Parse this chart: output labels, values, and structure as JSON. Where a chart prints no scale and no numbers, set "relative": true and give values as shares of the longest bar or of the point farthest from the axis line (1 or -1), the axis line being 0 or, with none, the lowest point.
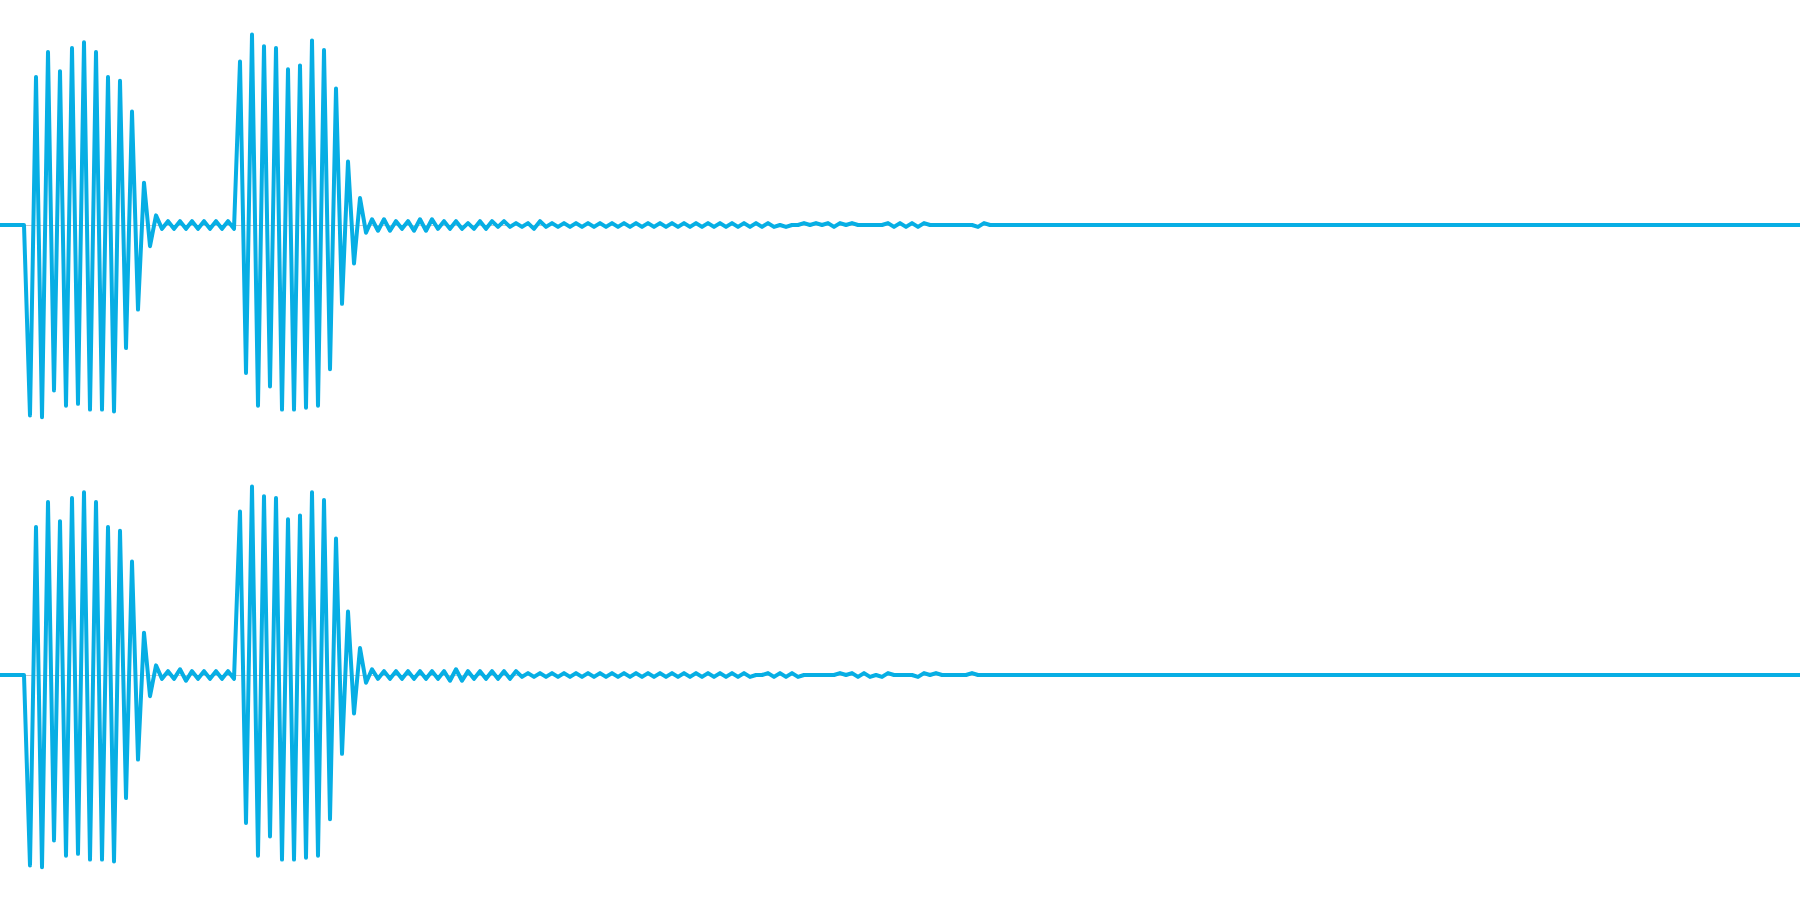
{
  "chart_data": [
    {
      "type": "line",
      "relative": true,
      "categories": [
        null,
        null,
        null,
        null,
        null,
        null,
        null,
        null,
        null,
        null,
        null,
        null,
        null,
        null,
        null,
        null,
        null,
        null,
        null,
        null,
        null,
        null,
        null,
        null,
        null,
        null,
        null,
        null,
        null,
        null,
        null,
        null,
        null,
        null,
        null,
        null,
        null,
        null,
        null,
        null,
        null,
        null,
        null,
        null,
        null,
        null,
        null,
        null,
        null,
        null,
        null,
        null,
        null,
        null,
        null,
        null,
        null,
        null,
        null,
        null,
        null,
        null,
        null,
        null,
        null,
        null,
        null,
        null,
        null,
        null,
        null,
        null,
        null,
        null,
        null,
        null,
        null,
        null,
        null,
        null,
        null,
        null,
        null,
        null,
        null,
        null,
        null,
        null,
        null,
        null,
        null,
        null,
        null,
        null,
        null,
        null,
        null,
        null,
        null,
        null,
        null,
        null,
        null,
        null,
        null,
        null,
        null,
        null,
        null,
        null,
        null,
        null,
        null,
        null,
        null,
        null,
        null,
        null,
        null,
        null,
        null,
        null,
        null,
        null,
        null,
        null,
        null,
        null,
        null,
        null,
        null,
        null,
        null,
        null,
        null,
        null,
        null,
        null,
        null,
        null,
        null,
        null,
        null,
        null,
        null,
        null,
        null,
        null,
        null,
        null,
        null,
        null,
        null,
        null,
        null,
        null,
        null,
        null,
        null,
        null,
        null,
        null,
        null,
        null,
        null,
        null,
        null,
        null,
        null,
        null,
        null,
        null,
        null,
        null,
        null,
        null,
        null,
        null,
        null,
        null,
        null,
        null,
        null,
        null,
        null,
        null,
        null,
        null,
        null,
        null,
        null,
        null,
        null,
        null,
        null,
        null,
        null,
        null,
        null,
        null,
        null,
        null,
        null,
        null,
        null,
        null,
        null,
        null,
        null,
        null,
        null,
        null,
        null,
        null,
        null,
        null,
        null,
        null,
        null,
        null,
        null,
        null,
        null,
        null,
        null,
        null,
        null,
        null,
        null,
        null,
        null,
        null,
        null,
        null,
        null,
        null,
        null,
        null,
        null,
        null,
        null,
        null,
        null,
        null,
        null,
        null,
        null,
        null,
        null,
        null,
        null,
        null,
        null,
        null,
        null,
        null,
        null,
        null,
        null,
        null,
        null,
        null,
        null,
        null,
        null,
        null,
        null,
        null,
        null,
        null,
        null,
        null,
        null,
        null,
        null,
        null,
        null,
        null,
        null,
        null,
        null,
        null,
        null,
        null,
        null,
        null,
        null,
        null,
        null,
        null,
        null,
        null,
        null,
        null,
        null,
        null,
        null,
        null,
        null,
        null,
        null
      ],
      "series": [
        {
          "color": "#07aee4",
          "values": [
            0,
            0,
            0,
            0,
            0,
            -0.99,
            0.77,
            -1,
            0.9,
            -0.86,
            0.8,
            -0.94,
            0.92,
            -0.93,
            0.95,
            -0.96,
            0.9,
            -0.96,
            0.77,
            -0.97,
            0.75,
            -0.64,
            0.59,
            -0.44,
            0.22,
            -0.11,
            0.05,
            -0.02,
            0.02,
            -0.02,
            0.02,
            -0.02,
            0.02,
            -0.02,
            0.02,
            -0.02,
            0.02,
            -0.02,
            0.02,
            -0.02,
            0.85,
            -0.77,
            0.99,
            -0.94,
            0.93,
            -0.84,
            0.92,
            -0.96,
            0.81,
            -0.96,
            0.83,
            -0.95,
            0.96,
            -0.94,
            0.91,
            -0.75,
            0.71,
            -0.41,
            0.33,
            -0.2,
            0.14,
            -0.04,
            0.03,
            -0.03,
            0.03,
            -0.03,
            0.02,
            -0.02,
            0.02,
            -0.03,
            0.03,
            -0.03,
            0.03,
            -0.02,
            0.02,
            -0.02,
            0.02,
            -0.02,
            0.01,
            -0.02,
            0.02,
            -0.02,
            0.02,
            -0.01,
            0.02,
            -0.01,
            0.01,
            -0.01,
            0.01,
            -0.02,
            0.02,
            -0.01,
            0.01,
            -0.01,
            0.01,
            -0.01,
            0.01,
            -0.01,
            0.01,
            -0.01,
            0.01,
            -0.01,
            0.01,
            -0.01,
            0.01,
            -0.01,
            0.01,
            -0.01,
            0.01,
            -0.01,
            0.01,
            -0.01,
            0.01,
            -0.01,
            0.01,
            -0.01,
            0.01,
            -0.01,
            0.01,
            -0.01,
            0.01,
            -0.01,
            0.01,
            -0.01,
            0.01,
            -0.01,
            0.01,
            -0.01,
            0.01,
            -0.01,
            0,
            -0.01,
            0,
            0,
            0.01,
            0,
            0.01,
            0,
            0.01,
            -0.01,
            0.01,
            0,
            0.01,
            0,
            0,
            0,
            0,
            0,
            0.01,
            -0.01,
            0.01,
            -0.01,
            0.01,
            -0.01,
            0.01,
            0,
            0,
            0,
            0,
            0,
            0,
            0,
            0,
            -0.01,
            0.01,
            0,
            0,
            0,
            0,
            0,
            0,
            0,
            0,
            0,
            0,
            0,
            0,
            0,
            0,
            0,
            0,
            0,
            0,
            0,
            0,
            0,
            0,
            0,
            0,
            0,
            0,
            0,
            0,
            0,
            0,
            0,
            0,
            0,
            0,
            0,
            0,
            0,
            0,
            0,
            0,
            0,
            0,
            0,
            0,
            0,
            0,
            0,
            0,
            0,
            0,
            0,
            0,
            0,
            0,
            0,
            0,
            0,
            0,
            0,
            0,
            0,
            0,
            0,
            0,
            0,
            0,
            0,
            0,
            0,
            0,
            0,
            0,
            0,
            0,
            0,
            0,
            0,
            0,
            0,
            0,
            0,
            0,
            0,
            0,
            0,
            0,
            0,
            0,
            0,
            0,
            0,
            0,
            0,
            0,
            0,
            0,
            0,
            0,
            0,
            0,
            0,
            0,
            0,
            0,
            0,
            0,
            0,
            0,
            0,
            0,
            0,
            0,
            0,
            0,
            0,
            0,
            0,
            0,
            0,
            0,
            0,
            0,
            0,
            0,
            0,
            0,
            0,
            0,
            0,
            0,
            0,
            0,
            0,
            0,
            0,
            0
          ]
        }
      ]
    },
    {
      "type": "line",
      "relative": true,
      "categories": [
        null,
        null,
        null,
        null,
        null,
        null,
        null,
        null,
        null,
        null,
        null,
        null,
        null,
        null,
        null,
        null,
        null,
        null,
        null,
        null,
        null,
        null,
        null,
        null,
        null,
        null,
        null,
        null,
        null,
        null,
        null,
        null,
        null,
        null,
        null,
        null,
        null,
        null,
        null,
        null,
        null,
        null,
        null,
        null,
        null,
        null,
        null,
        null,
        null,
        null,
        null,
        null,
        null,
        null,
        null,
        null,
        null,
        null,
        null,
        null,
        null,
        null,
        null,
        null,
        null,
        null,
        null,
        null,
        null,
        null,
        null,
        null,
        null,
        null,
        null,
        null,
        null,
        null,
        null,
        null,
        null,
        null,
        null,
        null,
        null,
        null,
        null,
        null,
        null,
        null,
        null,
        null,
        null,
        null,
        null,
        null,
        null,
        null,
        null,
        null,
        null,
        null,
        null,
        null,
        null,
        null,
        null,
        null,
        null,
        null,
        null,
        null,
        null,
        null,
        null,
        null,
        null,
        null,
        null,
        null,
        null,
        null,
        null,
        null,
        null,
        null,
        null,
        null,
        null,
        null,
        null,
        null,
        null,
        null,
        null,
        null,
        null,
        null,
        null,
        null,
        null,
        null,
        null,
        null,
        null,
        null,
        null,
        null,
        null,
        null,
        null,
        null,
        null,
        null,
        null,
        null,
        null,
        null,
        null,
        null,
        null,
        null,
        null,
        null,
        null,
        null,
        null,
        null,
        null,
        null,
        null,
        null,
        null,
        null,
        null,
        null,
        null,
        null,
        null,
        null,
        null,
        null,
        null,
        null,
        null,
        null,
        null,
        null,
        null,
        null,
        null,
        null,
        null,
        null,
        null,
        null,
        null,
        null,
        null,
        null,
        null,
        null,
        null,
        null,
        null,
        null,
        null,
        null,
        null,
        null,
        null,
        null,
        null,
        null,
        null,
        null,
        null,
        null,
        null,
        null,
        null,
        null,
        null,
        null,
        null,
        null,
        null,
        null,
        null,
        null,
        null,
        null,
        null,
        null,
        null,
        null,
        null,
        null,
        null,
        null,
        null,
        null,
        null,
        null,
        null,
        null,
        null,
        null,
        null,
        null,
        null,
        null,
        null,
        null,
        null,
        null,
        null,
        null,
        null,
        null,
        null,
        null,
        null,
        null,
        null,
        null,
        null,
        null,
        null,
        null,
        null,
        null,
        null,
        null,
        null,
        null,
        null,
        null,
        null,
        null,
        null,
        null,
        null,
        null,
        null,
        null,
        null,
        null,
        null,
        null,
        null,
        null,
        null,
        null,
        null,
        null,
        null,
        null,
        null,
        null,
        null
      ],
      "series": [
        {
          "color": "#07aee4",
          "values": [
            0,
            0,
            0,
            0,
            0,
            -0.99,
            0.77,
            -1,
            0.9,
            -0.86,
            0.8,
            -0.94,
            0.92,
            -0.93,
            0.95,
            -0.96,
            0.9,
            -0.96,
            0.77,
            -0.97,
            0.75,
            -0.64,
            0.59,
            -0.44,
            0.22,
            -0.11,
            0.05,
            -0.02,
            0.02,
            -0.02,
            0.03,
            -0.03,
            0.02,
            -0.02,
            0.02,
            -0.02,
            0.02,
            -0.02,
            0.02,
            -0.02,
            0.85,
            -0.77,
            0.98,
            -0.94,
            0.93,
            -0.84,
            0.92,
            -0.96,
            0.81,
            -0.96,
            0.83,
            -0.95,
            0.95,
            -0.94,
            0.91,
            -0.75,
            0.71,
            -0.41,
            0.33,
            -0.2,
            0.14,
            -0.04,
            0.03,
            -0.02,
            0.02,
            -0.02,
            0.02,
            -0.02,
            0.02,
            -0.02,
            0.02,
            -0.02,
            0.02,
            -0.02,
            0.02,
            -0.03,
            0.03,
            -0.03,
            0.02,
            -0.02,
            0.02,
            -0.02,
            0.02,
            -0.02,
            0.02,
            -0.02,
            0.02,
            -0.01,
            0.01,
            -0.01,
            0.01,
            -0.01,
            0.01,
            -0.01,
            0.01,
            -0.01,
            0.01,
            -0.01,
            0.01,
            -0.01,
            0.01,
            -0.01,
            0.01,
            -0.01,
            0.01,
            -0.01,
            0.01,
            -0.01,
            0.01,
            -0.01,
            0.01,
            -0.01,
            0.01,
            -0.01,
            0.01,
            -0.01,
            0.01,
            -0.01,
            0.01,
            -0.01,
            0.01,
            -0.01,
            0.01,
            -0.01,
            0.01,
            -0.01,
            0,
            0,
            0.01,
            -0.01,
            0.01,
            -0.01,
            0.01,
            -0.01,
            0,
            0,
            0,
            0,
            0,
            0,
            0.01,
            0,
            0.01,
            -0.01,
            0.01,
            -0.01,
            0,
            -0.01,
            0.01,
            0,
            0,
            0,
            0,
            -0.01,
            0.01,
            0,
            0.01,
            0,
            0,
            0,
            0,
            0,
            0.01,
            0,
            0,
            0,
            0,
            0,
            0,
            0,
            0,
            0,
            0,
            0,
            0,
            0,
            0,
            0,
            0,
            0,
            0,
            0,
            0,
            0,
            0,
            0,
            0,
            0,
            0,
            0,
            0,
            0,
            0,
            0,
            0,
            0,
            0,
            0,
            0,
            0,
            0,
            0,
            0,
            0,
            0,
            0,
            0,
            0,
            0,
            0,
            0,
            0,
            0,
            0,
            0,
            0,
            0,
            0,
            0,
            0,
            0,
            0,
            0,
            0,
            0,
            0,
            0,
            0,
            0,
            0,
            0,
            0,
            0,
            0,
            0,
            0,
            0,
            0,
            0,
            0,
            0,
            0,
            0,
            0,
            0,
            0,
            0,
            0,
            0,
            0,
            0,
            0,
            0,
            0,
            0,
            0,
            0,
            0,
            0,
            0,
            0,
            0,
            0,
            0,
            0,
            0,
            0,
            0,
            0,
            0,
            0,
            0,
            0,
            0,
            0,
            0,
            0,
            0,
            0,
            0,
            0,
            0,
            0,
            0,
            0,
            0,
            0,
            0,
            0,
            0,
            0,
            0,
            0,
            0,
            0,
            0,
            0,
            0,
            0,
            0,
            0
          ]
        }
      ]
    }
  ]
}
